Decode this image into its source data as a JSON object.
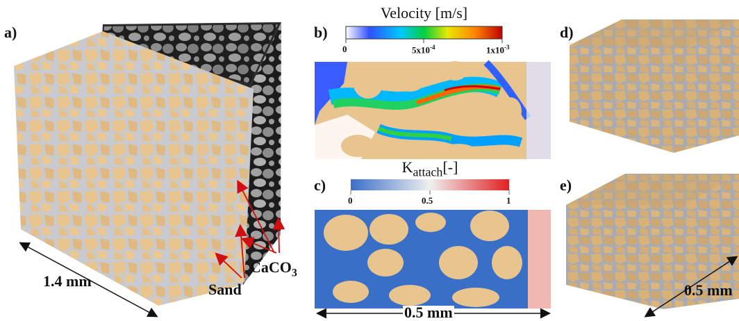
{
  "panels": {
    "a": {
      "label": "a)"
    },
    "b": {
      "label": "b)"
    },
    "c": {
      "label": "c)"
    },
    "d": {
      "label": "d)"
    },
    "e": {
      "label": "e)"
    }
  },
  "velocity_colorbar": {
    "title": "Velocity [m/s]",
    "ticks": [
      "0",
      "5x10",
      "1x10"
    ],
    "tick_exponents": [
      "",
      "-4",
      "-3"
    ]
  },
  "kattach_colorbar": {
    "title_main": "K",
    "title_sub": "attach",
    "title_unit": "[-]",
    "ticks": [
      "0",
      "0.5",
      "1"
    ]
  },
  "annotations": {
    "scale_a": "1.4 mm",
    "scale_c": "0.5 mm",
    "scale_e": "0.5 mm",
    "sand": "Sand",
    "caco3_main": "CaCO",
    "caco3_sub": "3"
  },
  "colors": {
    "sand": "#e8c48f",
    "pore_a": "#c9cbd0",
    "ct_dark": "#222222",
    "ct_light": "#9a9a9a",
    "velocity_low": "#ffffff",
    "velocity_mid": "#00c040",
    "velocity_high": "#d00000",
    "kattach_low": "#3a6fc8",
    "kattach_high": "#e23a3a",
    "arrow_red": "#d01010"
  }
}
